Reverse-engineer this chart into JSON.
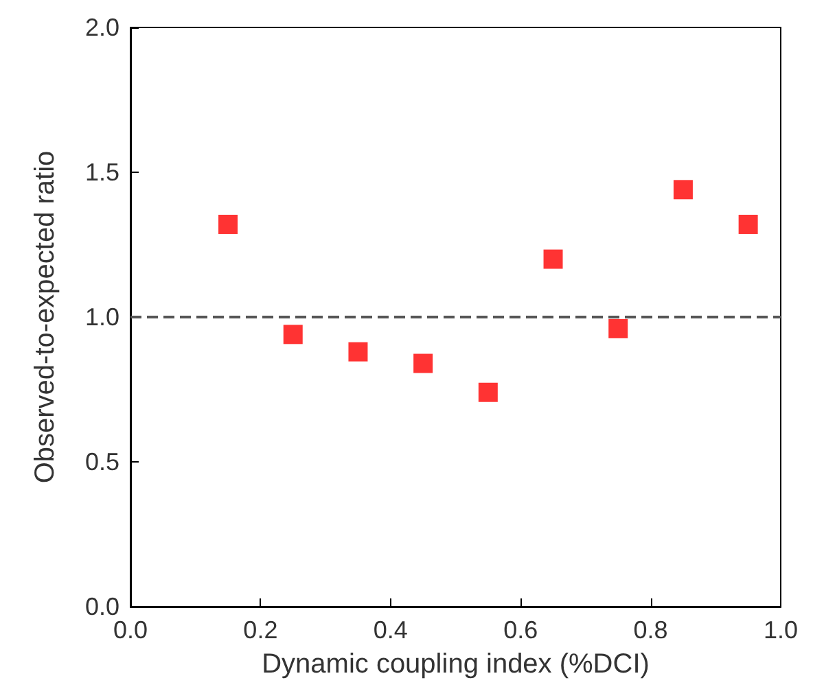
{
  "chart_data": {
    "type": "scatter",
    "xlabel": "Dynamic coupling index (%DCI)",
    "ylabel": "Observed-to-expected ratio",
    "x": [
      0.15,
      0.25,
      0.35,
      0.45,
      0.55,
      0.65,
      0.75,
      0.85,
      0.95
    ],
    "series": [
      {
        "color": "#ff0000",
        "values": [
          1.32,
          0.94,
          0.88,
          0.84,
          0.74,
          1.2,
          0.96,
          1.44,
          1.32
        ]
      }
    ],
    "marker": "square",
    "grid": false,
    "xlim": [
      0,
      1
    ],
    "xticks": [
      {
        "value": 0,
        "label": "0.0"
      },
      {
        "value": 0.2,
        "label": "0.2"
      },
      {
        "value": 0.4,
        "label": "0.4"
      },
      {
        "value": 0.6,
        "label": "0.6"
      },
      {
        "value": 0.8,
        "label": "0.8"
      },
      {
        "value": 1,
        "label": "1.0"
      }
    ],
    "ylim": [
      0,
      2
    ],
    "yticks": [
      {
        "value": 0,
        "label": "0.0"
      },
      {
        "value": 0.5,
        "label": "0.5"
      },
      {
        "value": 1,
        "label": "1.0"
      },
      {
        "value": 1.5,
        "label": "1.5"
      },
      {
        "value": 2,
        "label": "2.0"
      }
    ],
    "ref_lines": [
      {
        "axis": "y",
        "value": 1,
        "color": "#555555",
        "line_style": "dashed"
      }
    ]
  }
}
